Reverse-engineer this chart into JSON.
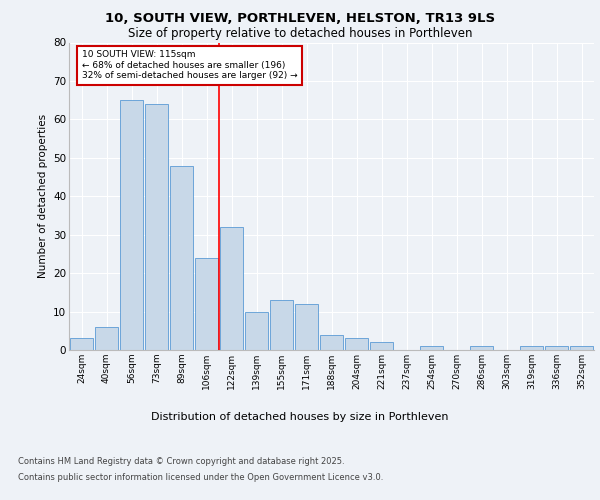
{
  "title": "10, SOUTH VIEW, PORTHLEVEN, HELSTON, TR13 9LS",
  "subtitle": "Size of property relative to detached houses in Porthleven",
  "xlabel": "Distribution of detached houses by size in Porthleven",
  "ylabel": "Number of detached properties",
  "categories": [
    "24sqm",
    "40sqm",
    "56sqm",
    "73sqm",
    "89sqm",
    "106sqm",
    "122sqm",
    "139sqm",
    "155sqm",
    "171sqm",
    "188sqm",
    "204sqm",
    "221sqm",
    "237sqm",
    "254sqm",
    "270sqm",
    "286sqm",
    "303sqm",
    "319sqm",
    "336sqm",
    "352sqm"
  ],
  "values": [
    3,
    6,
    65,
    64,
    48,
    24,
    32,
    10,
    13,
    12,
    4,
    3,
    2,
    0,
    1,
    0,
    1,
    0,
    1,
    1,
    1
  ],
  "bar_color": "#c8d8e8",
  "bar_edge_color": "#5b9bd5",
  "red_line_x": 5.5,
  "annotation_text": "10 SOUTH VIEW: 115sqm\n← 68% of detached houses are smaller (196)\n32% of semi-detached houses are larger (92) →",
  "annotation_box_color": "#ffffff",
  "annotation_box_edge": "#cc0000",
  "ylim": [
    0,
    80
  ],
  "yticks": [
    0,
    10,
    20,
    30,
    40,
    50,
    60,
    70,
    80
  ],
  "background_color": "#eef2f7",
  "grid_color": "#ffffff",
  "footer_line1": "Contains HM Land Registry data © Crown copyright and database right 2025.",
  "footer_line2": "Contains public sector information licensed under the Open Government Licence v3.0."
}
